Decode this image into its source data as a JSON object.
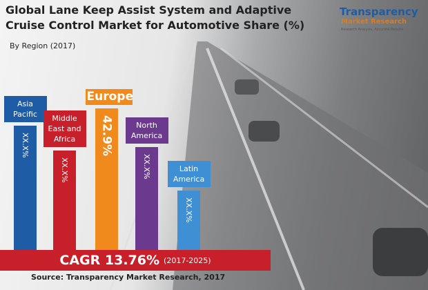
{
  "header": {
    "title": "Global Lane Keep Assist System and Adaptive Cruise Control Market for Automotive Share (%)",
    "subtitle": "By Region (2017)"
  },
  "logo": {
    "name": "Transparency",
    "name2": "Market Research",
    "tagline": "Research Analysis, Accurate Results"
  },
  "chart_data": {
    "type": "bar",
    "categories": [
      "Asia Pacific",
      "Middle East and Africa",
      "Europe",
      "North America",
      "Latin America"
    ],
    "values": [
      37.7,
      30.1,
      42.9,
      31.2,
      18.0
    ],
    "value_labels": [
      "XX.X%",
      "XX.X%",
      "42.9%",
      "XX.X%",
      "XX.X%"
    ],
    "colors": [
      "#1f5ca6",
      "#c8202a",
      "#f08a1c",
      "#6b3a8e",
      "#3e8fd3"
    ]
  },
  "cagr": {
    "label": "CAGR 13.76%",
    "period": "(2017-2025)"
  },
  "source": "Source: Transparency Market Research, 2017"
}
